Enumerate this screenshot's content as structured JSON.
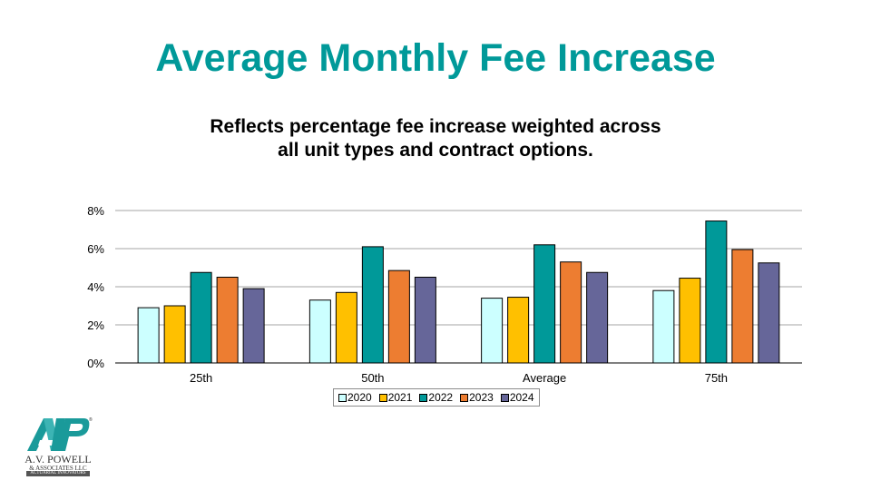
{
  "slide": {
    "title": "Average Monthly Fee Increase",
    "subtitle_lines": [
      "Reflects percentage fee increase weighted across",
      "all unit types and contract options."
    ],
    "logo": {
      "icon": "avp-logo-icon",
      "line1": "A.V. POWELL",
      "line2": "& ASSOCIATES LLC",
      "line3": "ACTUARIAL INNOVATORS",
      "trademark": "®"
    }
  },
  "chart_data": {
    "type": "bar",
    "title": "",
    "xlabel": "",
    "ylabel": "",
    "categories": [
      "25th",
      "50th",
      "Average",
      "75th"
    ],
    "series": [
      {
        "name": "2020",
        "color": "#CCFFFF",
        "values": [
          2.9,
          3.3,
          3.4,
          3.8
        ]
      },
      {
        "name": "2021",
        "color": "#FFC000",
        "values": [
          3.0,
          3.7,
          3.45,
          4.45
        ]
      },
      {
        "name": "2022",
        "color": "#009999",
        "values": [
          4.75,
          6.1,
          6.2,
          7.45
        ]
      },
      {
        "name": "2023",
        "color": "#ED7D31",
        "values": [
          4.5,
          4.85,
          5.3,
          5.95
        ]
      },
      {
        "name": "2024",
        "color": "#666699",
        "values": [
          3.9,
          4.5,
          4.75,
          5.25
        ]
      }
    ],
    "ylim": [
      0,
      8
    ],
    "yticks": [
      0,
      2,
      4,
      6,
      8
    ],
    "ytick_labels": [
      "0%",
      "2%",
      "4%",
      "6%",
      "8%"
    ],
    "grid": true,
    "legend_position": "bottom"
  }
}
